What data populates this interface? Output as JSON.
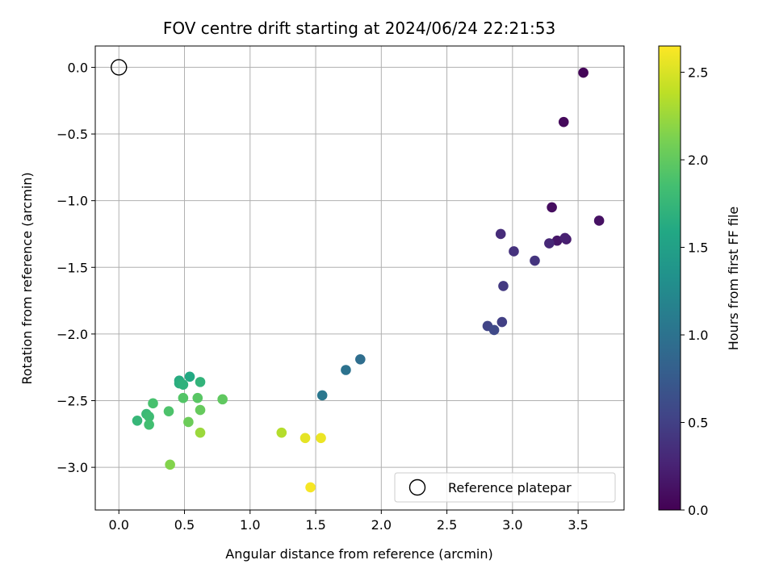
{
  "chart_data": {
    "type": "scatter",
    "title": "FOV centre drift starting at 2024/06/24 22:21:53",
    "xlabel": "Angular distance from reference (arcmin)",
    "ylabel": "Rotation from reference (arcmin)",
    "xlim": [
      -0.18,
      3.85
    ],
    "ylim": [
      -3.32,
      0.16
    ],
    "xticks": [
      0.0,
      0.5,
      1.0,
      1.5,
      2.0,
      2.5,
      3.0,
      3.5
    ],
    "xtick_labels": [
      "0.0",
      "0.5",
      "1.0",
      "1.5",
      "2.0",
      "2.5",
      "3.0",
      "3.5"
    ],
    "yticks": [
      0.0,
      -0.5,
      -1.0,
      -1.5,
      -2.0,
      -2.5,
      -3.0
    ],
    "ytick_labels": [
      "0.0",
      "−0.5",
      "−1.0",
      "−1.5",
      "−2.0",
      "−2.5",
      "−3.0"
    ],
    "grid": true,
    "legend": {
      "placement": "bottom-right",
      "entries": [
        "Reference platepar"
      ]
    },
    "reference_point": {
      "x": 0.0,
      "y": 0.0
    },
    "colorbar": {
      "label": "Hours from first FF file",
      "colormap": "viridis",
      "range": [
        0.0,
        2.65
      ],
      "ticks": [
        0.0,
        0.5,
        1.0,
        1.5,
        2.0,
        2.5
      ],
      "tick_labels": [
        "0.0",
        "0.5",
        "1.0",
        "1.5",
        "2.0",
        "2.5"
      ]
    },
    "points": [
      {
        "x": 3.54,
        "y": -0.04,
        "c": 0.03
      },
      {
        "x": 3.39,
        "y": -0.41,
        "c": 0.06
      },
      {
        "x": 3.3,
        "y": -1.05,
        "c": 0.09
      },
      {
        "x": 3.66,
        "y": -1.15,
        "c": 0.12
      },
      {
        "x": 3.34,
        "y": -1.3,
        "c": 0.16
      },
      {
        "x": 3.41,
        "y": -1.29,
        "c": 0.2
      },
      {
        "x": 3.4,
        "y": -1.28,
        "c": 0.24
      },
      {
        "x": 3.28,
        "y": -1.32,
        "c": 0.3
      },
      {
        "x": 2.91,
        "y": -1.25,
        "c": 0.33
      },
      {
        "x": 3.01,
        "y": -1.38,
        "c": 0.38
      },
      {
        "x": 3.17,
        "y": -1.45,
        "c": 0.4
      },
      {
        "x": 2.93,
        "y": -1.64,
        "c": 0.44
      },
      {
        "x": 2.92,
        "y": -1.91,
        "c": 0.5
      },
      {
        "x": 2.81,
        "y": -1.94,
        "c": 0.54
      },
      {
        "x": 2.86,
        "y": -1.97,
        "c": 0.58
      },
      {
        "x": 1.84,
        "y": -2.19,
        "c": 0.95
      },
      {
        "x": 1.73,
        "y": -2.27,
        "c": 1.0
      },
      {
        "x": 1.55,
        "y": -2.46,
        "c": 1.05
      },
      {
        "x": 0.54,
        "y": -2.32,
        "c": 1.6
      },
      {
        "x": 0.46,
        "y": -2.35,
        "c": 1.63
      },
      {
        "x": 0.46,
        "y": -2.37,
        "c": 1.66
      },
      {
        "x": 0.49,
        "y": -2.38,
        "c": 1.69
      },
      {
        "x": 0.62,
        "y": -2.36,
        "c": 1.72
      },
      {
        "x": 0.14,
        "y": -2.65,
        "c": 1.75
      },
      {
        "x": 0.21,
        "y": -2.6,
        "c": 1.78
      },
      {
        "x": 0.23,
        "y": -2.62,
        "c": 1.81
      },
      {
        "x": 0.23,
        "y": -2.68,
        "c": 1.84
      },
      {
        "x": 0.26,
        "y": -2.52,
        "c": 1.87
      },
      {
        "x": 0.38,
        "y": -2.58,
        "c": 1.9
      },
      {
        "x": 0.49,
        "y": -2.48,
        "c": 1.93
      },
      {
        "x": 0.6,
        "y": -2.48,
        "c": 1.96
      },
      {
        "x": 0.79,
        "y": -2.49,
        "c": 1.99
      },
      {
        "x": 0.62,
        "y": -2.57,
        "c": 2.02
      },
      {
        "x": 0.53,
        "y": -2.66,
        "c": 2.05
      },
      {
        "x": 0.39,
        "y": -2.98,
        "c": 2.15
      },
      {
        "x": 0.62,
        "y": -2.74,
        "c": 2.25
      },
      {
        "x": 1.24,
        "y": -2.74,
        "c": 2.35
      },
      {
        "x": 1.42,
        "y": -2.78,
        "c": 2.55
      },
      {
        "x": 1.54,
        "y": -2.78,
        "c": 2.58
      },
      {
        "x": 1.46,
        "y": -3.15,
        "c": 2.62
      }
    ]
  }
}
